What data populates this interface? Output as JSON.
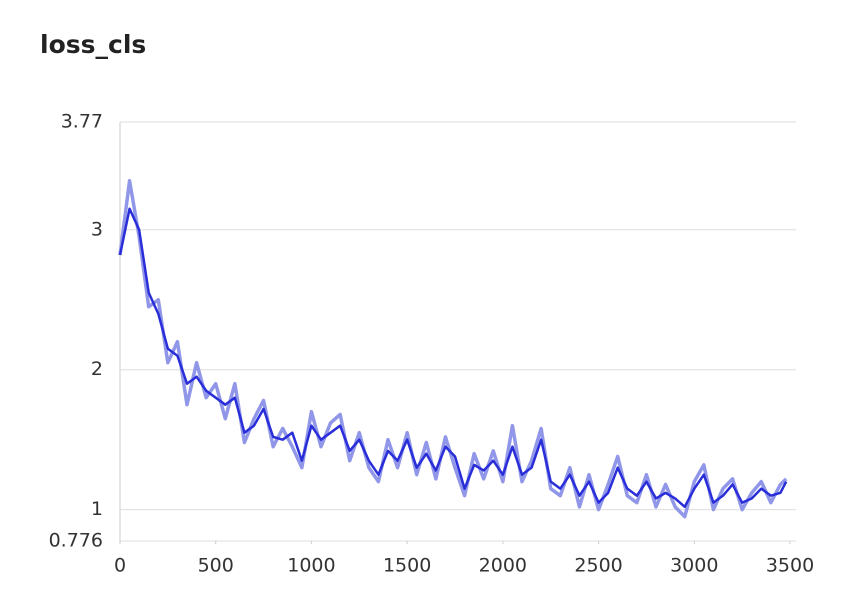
{
  "chart_data": {
    "type": "line",
    "title": "loss_cls",
    "x": [
      0,
      50,
      100,
      150,
      200,
      250,
      300,
      350,
      400,
      450,
      500,
      550,
      600,
      650,
      700,
      750,
      800,
      850,
      900,
      950,
      1000,
      1050,
      1100,
      1150,
      1200,
      1250,
      1300,
      1350,
      1400,
      1450,
      1500,
      1550,
      1600,
      1650,
      1700,
      1750,
      1800,
      1850,
      1900,
      1950,
      2000,
      2050,
      2100,
      2150,
      2200,
      2250,
      2300,
      2350,
      2400,
      2450,
      2500,
      2550,
      2600,
      2650,
      2700,
      2750,
      2800,
      2850,
      2900,
      2950,
      3000,
      3050,
      3100,
      3150,
      3200,
      3250,
      3300,
      3350,
      3400,
      3450,
      3480
    ],
    "series": [
      {
        "color": "#9197e8",
        "values": [
          2.82,
          3.35,
          2.95,
          2.45,
          2.5,
          2.05,
          2.2,
          1.75,
          2.05,
          1.8,
          1.9,
          1.65,
          1.9,
          1.48,
          1.65,
          1.78,
          1.45,
          1.58,
          1.45,
          1.3,
          1.7,
          1.45,
          1.62,
          1.68,
          1.35,
          1.55,
          1.3,
          1.2,
          1.5,
          1.3,
          1.55,
          1.25,
          1.48,
          1.22,
          1.52,
          1.3,
          1.1,
          1.4,
          1.22,
          1.42,
          1.2,
          1.6,
          1.2,
          1.35,
          1.58,
          1.15,
          1.1,
          1.3,
          1.02,
          1.25,
          1.0,
          1.18,
          1.38,
          1.1,
          1.05,
          1.25,
          1.02,
          1.18,
          1.02,
          0.95,
          1.2,
          1.32,
          1.0,
          1.15,
          1.22,
          1.0,
          1.12,
          1.2,
          1.05,
          1.18,
          1.22
        ]
      },
      {
        "color": "#2a2ed8",
        "values": [
          2.82,
          3.15,
          3.0,
          2.55,
          2.4,
          2.15,
          2.1,
          1.9,
          1.95,
          1.85,
          1.8,
          1.75,
          1.8,
          1.55,
          1.6,
          1.72,
          1.52,
          1.5,
          1.55,
          1.35,
          1.6,
          1.5,
          1.55,
          1.6,
          1.42,
          1.5,
          1.35,
          1.25,
          1.42,
          1.35,
          1.5,
          1.3,
          1.4,
          1.28,
          1.45,
          1.38,
          1.15,
          1.32,
          1.28,
          1.35,
          1.25,
          1.45,
          1.25,
          1.3,
          1.5,
          1.2,
          1.15,
          1.25,
          1.1,
          1.2,
          1.05,
          1.12,
          1.3,
          1.15,
          1.1,
          1.2,
          1.08,
          1.12,
          1.08,
          1.02,
          1.15,
          1.25,
          1.05,
          1.1,
          1.18,
          1.05,
          1.08,
          1.15,
          1.1,
          1.12,
          1.2
        ]
      }
    ],
    "xlim": [
      0,
      3500
    ],
    "xticks": [
      0,
      500,
      1000,
      1500,
      2000,
      2500,
      3000,
      3500
    ],
    "ylim": [
      0.776,
      3.77
    ],
    "yticks": [
      0.776,
      1,
      2,
      3,
      3.77
    ],
    "grid": true
  }
}
